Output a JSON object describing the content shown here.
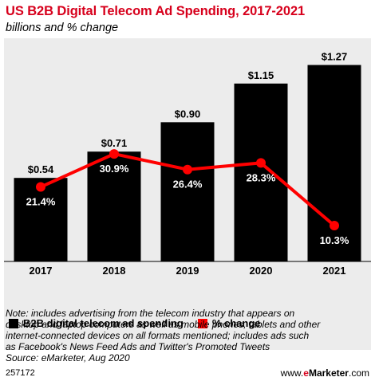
{
  "title": "US B2B Digital Telecom Ad Spending, 2017-2021",
  "subtitle": "billions and % change",
  "chart_data": {
    "type": "bar",
    "categories": [
      "2017",
      "2018",
      "2019",
      "2020",
      "2021"
    ],
    "series": [
      {
        "name": "B2B digital telecom ad spending",
        "type": "bar",
        "values": [
          0.54,
          0.71,
          0.9,
          1.15,
          1.27
        ],
        "labels": [
          "$0.54",
          "$0.71",
          "$0.90",
          "$1.15",
          "$1.27"
        ],
        "color": "#000000"
      },
      {
        "name": "% change",
        "type": "line",
        "values": [
          21.4,
          30.9,
          26.4,
          28.3,
          10.3
        ],
        "labels": [
          "21.4%",
          "30.9%",
          "26.4%",
          "28.3%",
          "10.3%"
        ],
        "color": "#ff0000"
      }
    ],
    "ylim_bar": [
      0,
      1.35
    ],
    "ylim_line": [
      0,
      60
    ],
    "grid": false,
    "legend_position": "bottom-left"
  },
  "legend": {
    "items": [
      {
        "label": "B2B digital telecom ad spending",
        "color": "#000000"
      },
      {
        "label": "% change",
        "color": "#ff0000"
      }
    ]
  },
  "note": {
    "lines": [
      "Note: includes advertising from the telecom industry that appears on",
      "desktop and laptop computers as well as mobile phones, tablets and other",
      "internet-connected devices on all formats mentioned; includes ads such",
      "as Facebook's News Feed Ads and Twitter's Promoted Tweets",
      "Source: eMarketer, Aug 2020"
    ]
  },
  "footer": {
    "id": "257172",
    "brand_prefix": "www.",
    "brand_e": "e",
    "brand_main": "Marketer",
    "brand_suffix": ".com"
  },
  "colors": {
    "title": "#d7001c",
    "background": "#ececec",
    "bar": "#000000",
    "line": "#ff0000"
  }
}
